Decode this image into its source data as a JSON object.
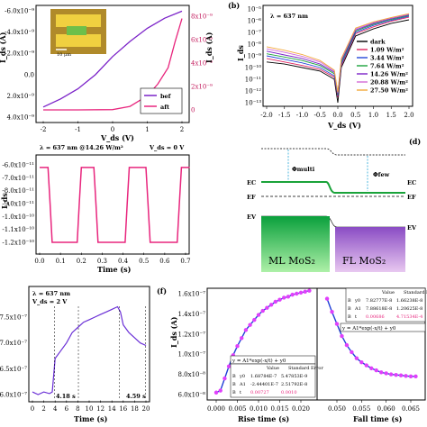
{
  "panel_a": {
    "scalebar": "10 μm",
    "y_left_ticks": [
      "-6.0x10⁻⁹",
      "-4.0x10⁻⁹",
      "-2.0x10⁻⁹",
      "0.0",
      "2.0x10⁻⁹",
      "4.0x10⁻⁹"
    ],
    "y_right_ticks": [
      "0",
      "2x10⁻⁹",
      "4x10⁻⁹",
      "6x10⁻⁹",
      "8x10⁻⁹"
    ],
    "x_ticks": [
      "-2",
      "-1",
      "0",
      "1",
      "2"
    ],
    "xlabel": "V_ds (V)",
    "ylabel_left": "I_ds (A)",
    "ylabel_right": "I_ds (A)",
    "legend": [
      "bef",
      "aft"
    ],
    "colors": {
      "bef": "#7b22c8",
      "aft": "#e8257d"
    }
  },
  "panel_b": {
    "label": "(b)",
    "annotation": "λ = 637 nm",
    "y_ticks": [
      "10⁻¹³",
      "10⁻¹²",
      "10⁻¹¹",
      "10⁻¹⁰",
      "10⁻⁹",
      "10⁻⁸",
      "10⁻⁷",
      "10⁻⁶",
      "10⁻⁵"
    ],
    "x_ticks": [
      "-2.0",
      "-1.5",
      "-1.0",
      "-0.5",
      "0.0",
      "0.5",
      "1.0",
      "1.5",
      "2.0"
    ],
    "xlabel": "V_ds (V)",
    "ylabel": "I_ds",
    "legend": [
      {
        "name": "dark",
        "color": "#000000"
      },
      {
        "name": "1.09 W/m²",
        "color": "#e0245e"
      },
      {
        "name": "3.44 W/m²",
        "color": "#2446d8"
      },
      {
        "name": "7.64 W/m²",
        "color": "#1aa33a"
      },
      {
        "name": "14.26 W/m²",
        "color": "#7b22c8"
      },
      {
        "name": "20.88 W/m²",
        "color": "#d36ad6"
      },
      {
        "name": "27.50 W/m²",
        "color": "#f2a93b"
      }
    ]
  },
  "panel_c": {
    "annotation_left": "λ = 637 nm @14.26 W/m²",
    "annotation_right": "V_ds = 0 V",
    "y_ticks": [
      "-6.0x10⁻¹¹",
      "-7.0x10⁻¹¹",
      "-8.0x10⁻¹¹",
      "-9.0x10⁻¹¹",
      "-1.0x10⁻¹⁰",
      "-1.1x10⁻¹⁰",
      "-1.2x10⁻¹⁰"
    ],
    "x_ticks": [
      "0.0",
      "0.1",
      "0.2",
      "0.3",
      "0.4",
      "0.5",
      "0.6",
      "0.7"
    ],
    "xlabel": "Time (s)",
    "ylabel": "I_ds",
    "color": "#e8257d"
  },
  "panel_d": {
    "label": "(d)",
    "phi_multi": "Φmulti",
    "phi_few": "Φfew",
    "ec_left": "EC",
    "ec_right": "EC",
    "ef_left": "EF",
    "ef_right": "EF",
    "ev_left": "EV",
    "ev_right": "EV",
    "ml_label": "ML MoS₂",
    "fl_label": "FL MoS₂"
  },
  "panel_e": {
    "annotation1": "λ = 637 nm",
    "annotation2": "V_ds = 2 V",
    "y_ticks": [
      "6.0x10⁻⁷",
      "6.5x10⁻⁷",
      "7.0x10⁻⁷",
      "7.5x10⁻⁷"
    ],
    "x_ticks": [
      "0",
      "2",
      "4",
      "6",
      "8",
      "10",
      "12",
      "14",
      "16",
      "18",
      "20"
    ],
    "xlabel": "Time (s)",
    "rise": "4.18 s",
    "fall": "4.59 s",
    "color": "#6a2fd6"
  },
  "panel_f": {
    "label": "(f)",
    "ylabel": "I_ds (A)",
    "y_ticks": [
      "6.0x10⁻⁸",
      "8.0x10⁻⁸",
      "1.0x10⁻⁷",
      "1.2x10⁻⁷",
      "1.4x10⁻⁷",
      "1.6x10⁻⁷"
    ],
    "rise_x_ticks": [
      "0.000",
      "0.005",
      "0.010",
      "0.015",
      "0.020"
    ],
    "fall_x_ticks": [
      "0.050",
      "0.055",
      "0.060",
      "0.065"
    ],
    "rise_xlabel": "Rise time (s)",
    "fall_xlabel": "Fall time (s)",
    "equation": "y = A1*exp(-x/t) + y0",
    "table_head": [
      "Value",
      "Standard Error"
    ],
    "rise_table": [
      [
        "B",
        "y0",
        "1.68784E-7",
        "5.47853E-9"
      ],
      [
        "B",
        "A1",
        "-2.44401E-7",
        "2.51792E-8"
      ],
      [
        "B",
        "t",
        "0.00727",
        "0.0010"
      ]
    ],
    "fall_table": [
      [
        "B",
        "y0",
        "7.82777E-8",
        "1.66238E-8"
      ],
      [
        "B",
        "A1",
        "7.88618E-8",
        "1.20625E-8"
      ],
      [
        "B",
        "t",
        "0.00686",
        "4.71534E-4"
      ]
    ],
    "colors": {
      "points": "#e040fb",
      "fit": "#1f3fd6",
      "highlight": "#e8257d"
    }
  },
  "chart_data": [
    {
      "type": "line",
      "panel": "a",
      "xlim": [
        -2,
        2
      ],
      "series": [
        {
          "name": "bef",
          "x": [
            -2,
            -1.5,
            -1,
            -0.5,
            0,
            0.5,
            1,
            1.5,
            2
          ],
          "y": [
            -5e-09,
            -4.2e-09,
            -3.2e-09,
            -1.8e-09,
            0,
            1.5e-09,
            2.8e-09,
            3.8e-09,
            4.5e-09
          ]
        },
        {
          "name": "aft",
          "x": [
            -2,
            -1,
            0,
            0.5,
            1,
            1.3,
            1.6,
            1.8,
            2
          ],
          "y": [
            0,
            0,
            2e-11,
            3e-10,
            1.2e-09,
            2.2e-09,
            3.6e-09,
            5.8e-09,
            7.8e-09
          ]
        }
      ]
    },
    {
      "type": "line",
      "panel": "b",
      "xlim": [
        -2,
        2
      ],
      "ylim": [
        1e-13,
        1e-05
      ],
      "yscale": "log",
      "series": [
        {
          "name": "dark",
          "x": [
            -2,
            -1.5,
            -1,
            -0.5,
            -0.1,
            0,
            0.1,
            0.5,
            1,
            1.5,
            2
          ],
          "y": [
            3e-10,
            2e-10,
            1e-10,
            5e-11,
            1e-11,
            1e-13,
            1e-10,
            5e-08,
            2e-07,
            6e-07,
            1.2e-06
          ]
        },
        {
          "name": "1.09 W/m²",
          "x": [
            -2,
            -1.5,
            -1,
            -0.5,
            -0.1,
            0,
            0.1,
            0.5,
            1,
            1.5,
            2
          ],
          "y": [
            6e-10,
            3e-10,
            1.5e-10,
            7e-11,
            1.5e-11,
            3e-13,
            1.5e-10,
            8e-08,
            3e-07,
            9e-07,
            2e-06
          ]
        },
        {
          "name": "3.44 W/m²",
          "x": [
            -2,
            -1.5,
            -1,
            -0.5,
            -0.1,
            0,
            0.1,
            0.5,
            1,
            1.5,
            2
          ],
          "y": [
            1e-09,
            5e-10,
            2.5e-10,
            1e-10,
            2e-11,
            4e-13,
            2e-10,
            1e-07,
            4e-07,
            1.1e-06,
            2.4e-06
          ]
        },
        {
          "name": "7.64 W/m²",
          "x": [
            -2,
            -1.5,
            -1,
            -0.5,
            -0.1,
            0,
            0.1,
            0.5,
            1,
            1.5,
            2
          ],
          "y": [
            1.5e-09,
            8e-10,
            4e-10,
            1.5e-10,
            3e-11,
            5e-13,
            3e-10,
            1.3e-07,
            5e-07,
            1.3e-06,
            2.8e-06
          ]
        },
        {
          "name": "14.26 W/m²",
          "x": [
            -2,
            -1.5,
            -1,
            -0.5,
            -0.1,
            0,
            0.1,
            0.5,
            1,
            1.5,
            2
          ],
          "y": [
            2.5e-09,
            1.2e-09,
            6e-10,
            2e-10,
            4e-11,
            6e-13,
            4e-10,
            1.6e-07,
            6e-07,
            1.5e-06,
            3.2e-06
          ]
        },
        {
          "name": "20.88 W/m²",
          "x": [
            -2,
            -1.5,
            -1,
            -0.5,
            -0.1,
            0,
            0.1,
            0.5,
            1,
            1.5,
            2
          ],
          "y": [
            4e-09,
            2e-09,
            9e-10,
            3e-10,
            5e-11,
            7e-13,
            5e-10,
            2e-07,
            7e-07,
            1.7e-06,
            3.6e-06
          ]
        },
        {
          "name": "27.50 W/m²",
          "x": [
            -2,
            -1.5,
            -1,
            -0.5,
            -0.1,
            0,
            0.1,
            0.5,
            1,
            1.5,
            2
          ],
          "y": [
            6e-09,
            3e-09,
            1.3e-09,
            4e-10,
            6e-11,
            8e-13,
            6e-10,
            2.4e-07,
            8e-07,
            1.9e-06,
            4e-06
          ]
        }
      ]
    },
    {
      "type": "line",
      "panel": "c",
      "xlim": [
        0,
        0.72
      ],
      "ylim": [
        -1.25e-10,
        -5.7e-11
      ],
      "series": [
        {
          "x": [
            0,
            0.04,
            0.05,
            0.06,
            0.18,
            0.19,
            0.2,
            0.26,
            0.27,
            0.28,
            0.41,
            0.42,
            0.43,
            0.51,
            0.52,
            0.53,
            0.66,
            0.67,
            0.68,
            0.72
          ],
          "y": [
            -6.2e-11,
            -6.2e-11,
            -9e-11,
            -1.2e-10,
            -1.2e-10,
            -9e-11,
            -6.2e-11,
            -6.2e-11,
            -9e-11,
            -1.2e-10,
            -1.2e-10,
            -9e-11,
            -6.2e-11,
            -6.2e-11,
            -9e-11,
            -1.2e-10,
            -1.2e-10,
            -9e-11,
            -6.2e-11,
            -6.2e-11
          ]
        }
      ]
    },
    {
      "type": "line",
      "panel": "e",
      "xlim": [
        0,
        20
      ],
      "ylim": [
        5.9e-07,
        7.9e-07
      ],
      "series": [
        {
          "x": [
            0,
            1,
            2,
            3,
            3.5,
            4,
            5,
            6,
            7,
            8,
            9,
            10,
            11,
            12,
            13,
            14,
            15,
            15.5,
            16,
            17,
            18,
            19,
            20
          ],
          "y": [
            6.05e-07,
            6e-07,
            6.05e-07,
            6.02e-07,
            6.05e-07,
            6.7e-07,
            6.85e-07,
            7e-07,
            7.2e-07,
            7.3e-07,
            7.4e-07,
            7.45e-07,
            7.5e-07,
            7.55e-07,
            7.6e-07,
            7.65e-07,
            7.7e-07,
            7.6e-07,
            7.35e-07,
            7.2e-07,
            7.1e-07,
            7e-07,
            6.95e-07
          ]
        }
      ]
    },
    {
      "type": "scatter",
      "panel": "f-rise",
      "xlim": [
        -0.002,
        0.024
      ],
      "ylim": [
        5.5e-08,
        1.7e-07
      ],
      "x": [
        0,
        0.001,
        0.002,
        0.003,
        0.004,
        0.005,
        0.006,
        0.007,
        0.008,
        0.009,
        0.01,
        0.011,
        0.012,
        0.013,
        0.014,
        0.015,
        0.016,
        0.017,
        0.018,
        0.019,
        0.02,
        0.021,
        0.022
      ],
      "y": [
        6.2e-08,
        6.4e-08,
        7.6e-08,
        8.8e-08,
        9.9e-08,
        1.08e-07,
        1.16e-07,
        1.24e-07,
        1.29e-07,
        1.34e-07,
        1.39e-07,
        1.43e-07,
        1.46e-07,
        1.49e-07,
        1.52e-07,
        1.54e-07,
        1.56e-07,
        1.57e-07,
        1.59e-07,
        1.6e-07,
        1.61e-07,
        1.62e-07,
        1.63e-07
      ]
    },
    {
      "type": "scatter",
      "panel": "f-fall",
      "xlim": [
        0.047,
        0.068
      ],
      "ylim": [
        5.5e-08,
        1.7e-07
      ],
      "x": [
        0.048,
        0.049,
        0.05,
        0.051,
        0.052,
        0.053,
        0.054,
        0.055,
        0.056,
        0.057,
        0.058,
        0.059,
        0.06,
        0.061,
        0.062,
        0.063,
        0.064,
        0.065,
        0.066
      ],
      "y": [
        1.55e-07,
        1.42e-07,
        1.3e-07,
        1.18e-07,
        1.09e-07,
        1.02e-07,
        9.6e-08,
        9.2e-08,
        8.9e-08,
        8.6e-08,
        8.4e-08,
        8.2e-08,
        8.1e-08,
        8e-08,
        7.95e-08,
        7.9e-08,
        7.85e-08,
        7.8e-08,
        7.8e-08
      ]
    }
  ]
}
